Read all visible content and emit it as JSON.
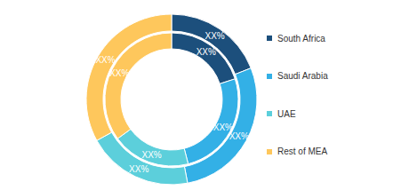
{
  "chart_data": {
    "type": "pie",
    "categories": [
      "South Africa",
      "Saudi Arabia",
      "UAE",
      "Rest of MEA"
    ],
    "colors": [
      "#1c4f7c",
      "#33b0e6",
      "#5ccfdb",
      "#fec75c"
    ],
    "data_labels": true,
    "legend": "right",
    "series": [
      {
        "values": [
          20,
          26,
          19,
          35
        ],
        "value_labels": [
          "XX%",
          "XX%",
          "XX%",
          "XX%"
        ]
      },
      {
        "values": [
          19,
          28,
          20,
          33
        ],
        "value_labels": [
          "XX%",
          "XX%",
          "XX%",
          "XX%"
        ]
      }
    ]
  }
}
